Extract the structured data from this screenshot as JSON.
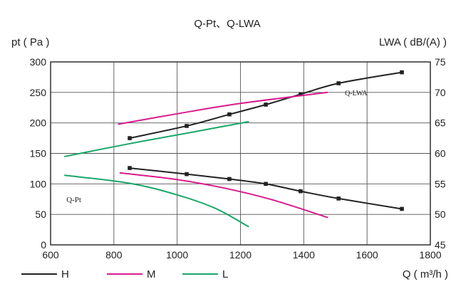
{
  "chart_data": {
    "type": "line",
    "title": "Q-Pt、Q-LWA",
    "xlabel": "Q ( m³/h )",
    "ylabel_left": "pt ( Pa )",
    "ylabel_right": "LWA ( dB/(A) )",
    "xlim": [
      600,
      1800
    ],
    "xticks": [
      600,
      800,
      1000,
      1200,
      1400,
      1600,
      1800
    ],
    "ylim_left": [
      0,
      300
    ],
    "yticks_left": [
      0,
      50,
      100,
      150,
      200,
      250,
      300
    ],
    "ylim_right": [
      45,
      75
    ],
    "yticks_right": [
      45,
      50,
      55,
      60,
      65,
      70,
      75
    ],
    "grid": true,
    "annotations": [
      {
        "text": "Q-LWA",
        "x": 1530,
        "y": 69.5,
        "axis": "right"
      },
      {
        "text": "Q-Pt",
        "x": 650,
        "y": 70,
        "axis": "left"
      }
    ],
    "legend": {
      "placement": "bottom-left",
      "entries": [
        {
          "name": "H",
          "color": "#222222"
        },
        {
          "name": "M",
          "color": "#d81b8e"
        },
        {
          "name": "L",
          "color": "#1aa66a"
        }
      ]
    },
    "series": [
      {
        "name": "H",
        "curve": "Q-Pt",
        "axis": "left",
        "color": "#222222",
        "markers": true,
        "x": [
          850,
          1030,
          1165,
          1280,
          1390,
          1510,
          1710
        ],
        "y": [
          126,
          116,
          108,
          100,
          88,
          76,
          59
        ]
      },
      {
        "name": "M",
        "curve": "Q-Pt",
        "axis": "left",
        "color": "#d81b8e",
        "markers": false,
        "x": [
          820,
          1000,
          1150,
          1300,
          1475
        ],
        "y": [
          118,
          107,
          93,
          74,
          45
        ]
      },
      {
        "name": "L",
        "curve": "Q-Pt",
        "axis": "left",
        "color": "#1aa66a",
        "markers": false,
        "x": [
          645,
          850,
          1000,
          1120,
          1225
        ],
        "y": [
          114,
          101,
          82,
          60,
          30
        ]
      },
      {
        "name": "H",
        "curve": "Q-LWA",
        "axis": "right",
        "color": "#222222",
        "markers": true,
        "x": [
          850,
          1030,
          1165,
          1280,
          1390,
          1510,
          1710
        ],
        "y": [
          62.5,
          64.5,
          66.4,
          68,
          69.7,
          71.5,
          73.3
        ]
      },
      {
        "name": "M",
        "curve": "Q-LWA",
        "axis": "right",
        "color": "#d81b8e",
        "markers": false,
        "x": [
          815,
          1000,
          1200,
          1475
        ],
        "y": [
          64.8,
          66.5,
          68.2,
          70
        ]
      },
      {
        "name": "L",
        "curve": "Q-LWA",
        "axis": "right",
        "color": "#1aa66a",
        "markers": false,
        "x": [
          645,
          850,
          1050,
          1225
        ],
        "y": [
          59.5,
          61.6,
          63.5,
          65.2
        ]
      }
    ]
  }
}
